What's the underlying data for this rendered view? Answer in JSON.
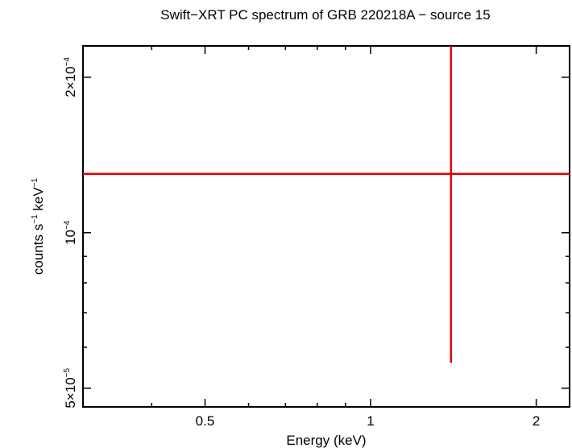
{
  "chart_data": {
    "type": "scatter",
    "title": "Swift−XRT PC spectrum of GRB 220218A − source 15",
    "xlabel": "Energy (keV)",
    "ylabel": {
      "base": "counts s",
      "exp1": "−1",
      "mid": " keV",
      "exp2": "−1"
    },
    "xscale": "log",
    "yscale": "log",
    "xlim": [
      0.3,
      2.3
    ],
    "ylim": [
      4.6e-05,
      0.00023
    ],
    "x_ticks": [
      {
        "value": 0.5,
        "label": "0.5"
      },
      {
        "value": 1,
        "label": "1"
      },
      {
        "value": 2,
        "label": "2"
      }
    ],
    "y_ticks": [
      {
        "value": 5e-05,
        "mant": "5×10",
        "exp": "−5"
      },
      {
        "value": 0.0001,
        "mant": "10",
        "exp": "−4"
      },
      {
        "value": 0.0002,
        "mant": "2×10",
        "exp": "−4"
      }
    ],
    "series": [
      {
        "color": "#e00000",
        "points": [
          {
            "x": 1.4,
            "xlo": 0.3,
            "xhi": 2.3,
            "y": 0.00013,
            "ylo": 5.6e-05,
            "yhi": 0.00023
          }
        ]
      }
    ],
    "grid": false
  }
}
